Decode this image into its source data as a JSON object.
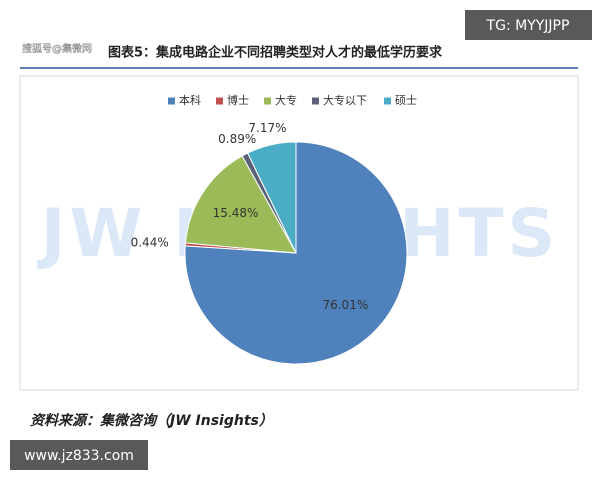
{
  "chart_data": {
    "type": "pie",
    "title": "图表5：集成电路企业不同招聘类型对人才的最低学历要求",
    "categories": [
      "本科",
      "博士",
      "大专",
      "大专以下",
      "硕士"
    ],
    "values": [
      76.01,
      0.44,
      15.48,
      0.89,
      7.17
    ],
    "value_labels": [
      "76.01%",
      "0.44%",
      "15.48%",
      "0.89%",
      "7.17%"
    ],
    "colors": [
      "#4f81bd",
      "#c0504d",
      "#9bbb59",
      "#5b6078",
      "#4bacc6"
    ],
    "legend": "top",
    "source": "资料来源：集微咨询（JW Insights）"
  },
  "watermarks": {
    "top_right": "TG: MYYJJPP",
    "bottom_left": "www.jz833.com",
    "background": "JW INSIGHTS",
    "title_overlay": "搜狐号@集微网"
  }
}
